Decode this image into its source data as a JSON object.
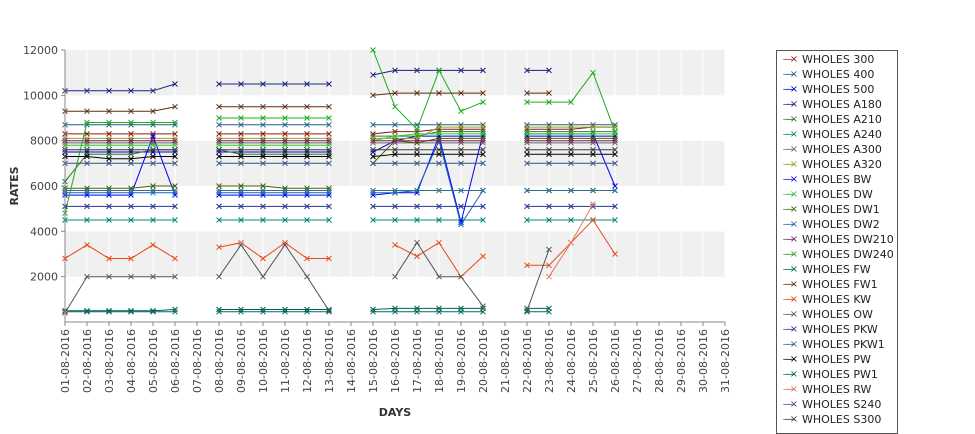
{
  "chart_data": {
    "type": "line",
    "xlabel": "DAYS",
    "ylabel": "RATES",
    "ylim": [
      0,
      12000
    ],
    "yticks": [
      "2000",
      "4000",
      "6000",
      "8000",
      "10000",
      "12000"
    ],
    "categories": [
      "01-08-2016",
      "02-08-2016",
      "03-08-2016",
      "04-08-2016",
      "05-08-2016",
      "06-08-2016",
      "07-08-2016",
      "08-08-2016",
      "09-08-2016",
      "10-08-2016",
      "11-08-2016",
      "12-08-2016",
      "13-08-2016",
      "14-08-2016",
      "15-08-2016",
      "16-08-2016",
      "17-08-2016",
      "18-08-2016",
      "19-08-2016",
      "20-08-2016",
      "21-08-2016",
      "22-08-2016",
      "23-08-2016",
      "24-08-2016",
      "25-08-2016",
      "26-08-2016",
      "27-08-2016",
      "28-08-2016",
      "29-08-2016",
      "30-08-2016",
      "31-08-2016"
    ],
    "grid": true,
    "legend_position": "right",
    "series": [
      {
        "name": "WHOLES 300",
        "color": "#8b1a1a",
        "values": [
          8300,
          8300,
          8300,
          8300,
          8300,
          8300,
          null,
          8300,
          8300,
          8300,
          8300,
          8300,
          8300,
          null,
          8300,
          8400,
          8400,
          8500,
          8500,
          8500,
          null,
          8500,
          8500,
          8500,
          8600,
          8600,
          null,
          null,
          null,
          null,
          null
        ]
      },
      {
        "name": "WHOLES 400",
        "color": "#1a5f8b",
        "values": [
          8700,
          8700,
          8700,
          8700,
          8700,
          8700,
          null,
          8700,
          8700,
          8700,
          8700,
          8700,
          8700,
          null,
          8700,
          8700,
          8700,
          8700,
          8700,
          8700,
          null,
          8700,
          8700,
          8700,
          8700,
          8700,
          null,
          null,
          null,
          null,
          null
        ]
      },
      {
        "name": "WHOLES 500",
        "color": "#0000cc",
        "values": [
          7500,
          7500,
          7500,
          7500,
          7500,
          7500,
          null,
          7500,
          7500,
          7500,
          7500,
          7500,
          7500,
          null,
          7500,
          8000,
          8200,
          8200,
          8200,
          8200,
          null,
          8200,
          8200,
          8200,
          8200,
          8200,
          null,
          null,
          null,
          null,
          null
        ]
      },
      {
        "name": "WHOLES A180",
        "color": "#1a237e",
        "values": [
          10200,
          10200,
          10200,
          10200,
          10200,
          10500,
          null,
          10500,
          10500,
          10500,
          10500,
          10500,
          10500,
          null,
          10900,
          11100,
          11100,
          11100,
          11100,
          11100,
          null,
          11100,
          11100,
          null,
          null,
          null,
          null,
          null,
          null,
          null,
          null
        ]
      },
      {
        "name": "WHOLES A210",
        "color": "#2e7d32",
        "values": [
          6200,
          7400,
          7400,
          7400,
          7600,
          7600,
          null,
          7600,
          7400,
          7400,
          7400,
          7400,
          7400,
          null,
          8200,
          8200,
          8200,
          8400,
          8400,
          8400,
          null,
          8400,
          8400,
          8400,
          8400,
          8400,
          null,
          null,
          null,
          null,
          null
        ]
      },
      {
        "name": "WHOLES A240",
        "color": "#00897b",
        "values": [
          4500,
          4500,
          4500,
          4500,
          4500,
          4500,
          null,
          4500,
          4500,
          4500,
          4500,
          4500,
          4500,
          null,
          4500,
          4500,
          4500,
          4500,
          4500,
          4500,
          null,
          4500,
          4500,
          4500,
          4500,
          4500,
          null,
          null,
          null,
          null,
          null
        ]
      },
      {
        "name": "WHOLES A300",
        "color": "#6a6a6a",
        "values": [
          7900,
          7900,
          7900,
          7900,
          7900,
          7900,
          null,
          7900,
          7900,
          7900,
          7900,
          7900,
          7900,
          null,
          7900,
          7900,
          7900,
          7900,
          7900,
          7900,
          null,
          7900,
          7900,
          7900,
          7900,
          7900,
          null,
          null,
          null,
          null,
          null
        ]
      },
      {
        "name": "WHOLES A320",
        "color": "#9e9d24",
        "values": [
          8100,
          8100,
          8100,
          8100,
          8100,
          8100,
          null,
          8100,
          8100,
          8100,
          8100,
          8100,
          8100,
          null,
          8100,
          8100,
          8100,
          8600,
          8600,
          8600,
          null,
          8600,
          8600,
          8600,
          8600,
          8600,
          null,
          null,
          null,
          null,
          null
        ]
      },
      {
        "name": "WHOLES BW",
        "color": "#0000ff",
        "values": [
          5600,
          5600,
          5600,
          5600,
          8200,
          5600,
          null,
          5600,
          5600,
          5600,
          5600,
          5600,
          5600,
          null,
          5600,
          5700,
          5700,
          8200,
          4400,
          8300,
          null,
          8300,
          8300,
          8300,
          8300,
          6000,
          null,
          null,
          null,
          null,
          null
        ]
      },
      {
        "name": "WHOLES DW",
        "color": "#33cc33",
        "values": [
          7800,
          7800,
          7800,
          7800,
          7800,
          7800,
          null,
          7800,
          7800,
          7800,
          7800,
          7800,
          7800,
          null,
          8000,
          8200,
          8300,
          8300,
          8300,
          8300,
          null,
          8300,
          8300,
          8300,
          8300,
          8300,
          null,
          null,
          null,
          null,
          null
        ]
      },
      {
        "name": "WHOLES DW1",
        "color": "#4a5d00",
        "values": [
          5900,
          5900,
          5900,
          5900,
          6000,
          6000,
          null,
          6000,
          6000,
          6000,
          5900,
          5900,
          5900,
          null,
          7000,
          8000,
          7900,
          8100,
          8100,
          8100,
          null,
          8100,
          8100,
          8100,
          8100,
          8100,
          null,
          null,
          null,
          null,
          null
        ]
      },
      {
        "name": "WHOLES DW2",
        "color": "#1565c0",
        "values": [
          5700,
          5700,
          5700,
          5700,
          5700,
          5700,
          null,
          5700,
          5700,
          5700,
          5700,
          5700,
          5700,
          null,
          5700,
          5700,
          5800,
          8000,
          4300,
          5800,
          null,
          5800,
          5800,
          5800,
          5800,
          5800,
          null,
          null,
          null,
          null,
          null
        ]
      },
      {
        "name": "WHOLES DW210",
        "color": "#7b1f5a",
        "values": [
          8000,
          8000,
          8000,
          8000,
          8000,
          8000,
          null,
          8000,
          8000,
          8000,
          8000,
          8000,
          8000,
          null,
          8000,
          8000,
          8000,
          8000,
          8000,
          8000,
          null,
          8000,
          8000,
          8000,
          8000,
          8000,
          null,
          null,
          null,
          null,
          null
        ]
      },
      {
        "name": "WHOLES DW240",
        "color": "#22aa22",
        "values": [
          4800,
          8800,
          8800,
          8800,
          8800,
          8800,
          null,
          9000,
          9000,
          9000,
          9000,
          9000,
          9000,
          null,
          12000,
          9500,
          8500,
          11100,
          9300,
          9700,
          null,
          9700,
          9700,
          9700,
          11000,
          8400,
          null,
          null,
          null,
          null,
          null
        ]
      },
      {
        "name": "WHOLES FW",
        "color": "#006050",
        "values": [
          500,
          500,
          500,
          500,
          500,
          550,
          null,
          550,
          550,
          550,
          550,
          550,
          550,
          null,
          550,
          600,
          600,
          600,
          600,
          600,
          null,
          600,
          600,
          null,
          null,
          null,
          null,
          null,
          null,
          null,
          null
        ]
      },
      {
        "name": "WHOLES FW1",
        "color": "#5d2e0f",
        "values": [
          9300,
          9300,
          9300,
          9300,
          9300,
          9500,
          null,
          9500,
          9500,
          9500,
          9500,
          9500,
          9500,
          null,
          10000,
          10100,
          10100,
          10100,
          10100,
          10100,
          null,
          10100,
          10100,
          null,
          null,
          null,
          null,
          null,
          null,
          null,
          null
        ]
      },
      {
        "name": "WHOLES KW",
        "color": "#e64a19",
        "values": [
          2800,
          3400,
          2800,
          2800,
          3400,
          2800,
          null,
          3300,
          3500,
          2800,
          3500,
          2800,
          2800,
          null,
          null,
          3400,
          2900,
          3500,
          2000,
          2900,
          null,
          2500,
          2500,
          3500,
          4500,
          3000,
          null,
          null,
          null,
          null,
          null
        ]
      },
      {
        "name": "WHOLES OW",
        "color": "#555555",
        "values": [
          400,
          2000,
          2000,
          2000,
          2000,
          2000,
          null,
          2000,
          3400,
          2000,
          3400,
          2000,
          500,
          null,
          null,
          2000,
          3500,
          2000,
          2000,
          700,
          null,
          500,
          3200,
          null,
          null,
          null,
          null,
          null,
          null,
          null,
          null
        ]
      },
      {
        "name": "WHOLES PKW",
        "color": "#283593",
        "values": [
          5100,
          5100,
          5100,
          5100,
          5100,
          5100,
          null,
          5100,
          5100,
          5100,
          5100,
          5100,
          5100,
          null,
          5100,
          5100,
          5100,
          5100,
          5100,
          5100,
          null,
          5100,
          5100,
          5100,
          5100,
          5100,
          null,
          null,
          null,
          null,
          null
        ]
      },
      {
        "name": "WHOLES PKW1",
        "color": "#2e6f8e",
        "values": [
          5800,
          5800,
          5800,
          5800,
          5800,
          5800,
          null,
          5800,
          5800,
          5800,
          5800,
          5800,
          5800,
          null,
          5800,
          5800,
          5800,
          5800,
          5800,
          5800,
          null,
          5800,
          5800,
          5800,
          5800,
          5800,
          null,
          null,
          null,
          null,
          null
        ]
      },
      {
        "name": "WHOLES PW",
        "color": "#000000",
        "values": [
          7300,
          7300,
          7200,
          7200,
          7300,
          7300,
          null,
          7300,
          7300,
          7300,
          7300,
          7300,
          7300,
          null,
          7300,
          7400,
          7400,
          7400,
          7400,
          7400,
          null,
          7400,
          7400,
          7400,
          7400,
          7400,
          null,
          null,
          null,
          null,
          null
        ]
      },
      {
        "name": "WHOLES PW1",
        "color": "#00695c",
        "values": [
          450,
          450,
          450,
          450,
          450,
          450,
          null,
          450,
          450,
          450,
          450,
          450,
          450,
          null,
          450,
          450,
          450,
          450,
          450,
          450,
          null,
          450,
          450,
          null,
          null,
          null,
          null,
          null,
          null,
          null,
          null
        ]
      },
      {
        "name": "WHOLES RW",
        "color": "#e07a5f",
        "values": [
          400,
          null,
          null,
          null,
          null,
          null,
          null,
          null,
          3500,
          null,
          null,
          null,
          null,
          null,
          null,
          null,
          null,
          null,
          null,
          null,
          null,
          null,
          2000,
          3500,
          5200,
          null,
          null,
          null,
          null,
          null,
          null
        ]
      },
      {
        "name": "WHOLES S240",
        "color": "#2f4f7f",
        "values": [
          7000,
          7000,
          7000,
          7000,
          7000,
          7000,
          null,
          7000,
          7000,
          7000,
          7000,
          7000,
          7000,
          null,
          7000,
          7000,
          7000,
          7000,
          7000,
          7000,
          null,
          7000,
          7000,
          7000,
          7000,
          7000,
          null,
          null,
          null,
          null,
          null
        ]
      },
      {
        "name": "WHOLES S300",
        "color": "#3a3a3a",
        "values": [
          7600,
          7600,
          7600,
          7600,
          7600,
          7600,
          null,
          7600,
          7600,
          7600,
          7600,
          7600,
          7600,
          null,
          7600,
          7600,
          7600,
          7600,
          7600,
          7600,
          null,
          7600,
          7600,
          7600,
          7600,
          7600,
          null,
          null,
          null,
          null,
          null
        ]
      }
    ]
  }
}
